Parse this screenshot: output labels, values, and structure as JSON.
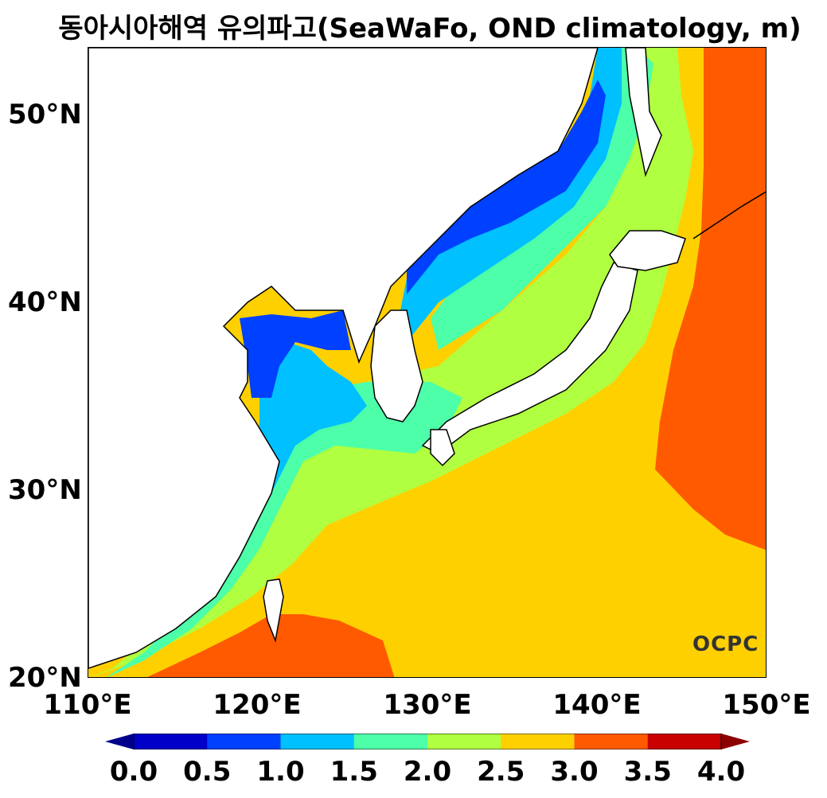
{
  "title": "동아시아해역 유의파고(SeaWaFo, OND climatology, m)",
  "logo_text": "OCPC",
  "axes": {
    "y_labels": [
      "50°N",
      "40°N",
      "30°N",
      "20°N"
    ],
    "x_labels": [
      "110°E",
      "120°E",
      "130°E",
      "140°E",
      "150°E"
    ]
  },
  "colorbar": {
    "ticks": [
      "0.0",
      "0.5",
      "1.0",
      "1.5",
      "2.0",
      "2.5",
      "3.0",
      "3.5",
      "4.0"
    ],
    "colors": [
      "#0000c8",
      "#0040ff",
      "#00c0ff",
      "#4cffa8",
      "#b0ff40",
      "#ffd000",
      "#ff5a00",
      "#c80000"
    ],
    "under_color": "#00008b",
    "over_color": "#8b0000"
  },
  "map": {
    "land_color": "#ffffff",
    "coast_color": "#000000",
    "lon_range": [
      110,
      150
    ],
    "lat_range": [
      20,
      53.5
    ]
  }
}
